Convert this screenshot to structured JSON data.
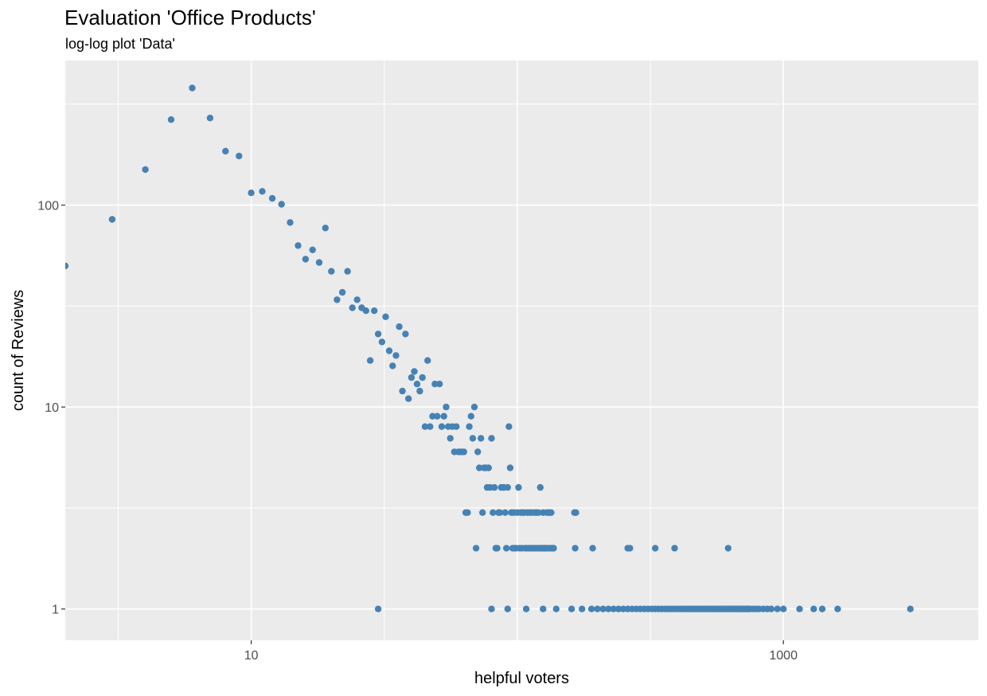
{
  "chart_data": {
    "type": "scatter",
    "title": "Evaluation 'Office Products'",
    "subtitle": "log-log plot 'Data'",
    "xlabel": "helpful voters",
    "ylabel": "count of Reviews",
    "xscale": "log10",
    "yscale": "log10",
    "xlim": [
      2,
      5400
    ],
    "ylim": [
      0.7,
      520
    ],
    "x_ticks": [
      10,
      1000
    ],
    "x_tick_labels": [
      "10",
      "1000"
    ],
    "y_ticks": [
      1,
      10,
      100
    ],
    "y_tick_labels": [
      "1",
      "10",
      "100"
    ],
    "grid": true,
    "point_color": "#4682B4",
    "panel_background": "#EBEBEB",
    "series": [
      {
        "name": "Data",
        "points": [
          [
            2,
            50
          ],
          [
            3,
            85
          ],
          [
            4,
            150
          ],
          [
            5,
            265
          ],
          [
            6,
            380
          ],
          [
            7,
            270
          ],
          [
            8,
            185
          ],
          [
            9,
            175
          ],
          [
            10,
            115
          ],
          [
            11,
            117
          ],
          [
            12,
            108
          ],
          [
            13,
            101
          ],
          [
            14,
            82
          ],
          [
            15,
            63
          ],
          [
            16,
            54
          ],
          [
            17,
            60
          ],
          [
            18,
            52
          ],
          [
            19,
            77
          ],
          [
            20,
            47
          ],
          [
            21,
            34
          ],
          [
            22,
            37
          ],
          [
            23,
            47
          ],
          [
            24,
            31
          ],
          [
            25,
            34
          ],
          [
            26,
            31
          ],
          [
            27,
            30
          ],
          [
            28,
            17
          ],
          [
            29,
            30
          ],
          [
            30,
            23
          ],
          [
            31,
            21
          ],
          [
            32,
            28
          ],
          [
            33,
            19
          ],
          [
            34,
            16
          ],
          [
            35,
            18
          ],
          [
            36,
            25
          ],
          [
            37,
            12
          ],
          [
            38,
            23
          ],
          [
            39,
            11
          ],
          [
            40,
            14
          ],
          [
            41,
            15
          ],
          [
            42,
            13
          ],
          [
            43,
            12
          ],
          [
            44,
            14
          ],
          [
            45,
            8
          ],
          [
            46,
            17
          ],
          [
            47,
            8
          ],
          [
            48,
            9
          ],
          [
            49,
            13
          ],
          [
            50,
            9
          ],
          [
            51,
            13
          ],
          [
            52,
            8
          ],
          [
            53,
            9
          ],
          [
            54,
            10
          ],
          [
            55,
            8
          ],
          [
            56,
            7
          ],
          [
            57,
            8
          ],
          [
            58,
            6
          ],
          [
            59,
            8
          ],
          [
            60,
            6
          ],
          [
            61,
            6
          ],
          [
            62,
            6
          ],
          [
            63,
            6
          ],
          [
            64,
            3
          ],
          [
            65,
            3
          ],
          [
            66,
            8
          ],
          [
            67,
            9
          ],
          [
            68,
            7
          ],
          [
            69,
            10
          ],
          [
            70,
            2
          ],
          [
            71,
            6
          ],
          [
            72,
            5
          ],
          [
            73,
            7
          ],
          [
            74,
            3
          ],
          [
            75,
            5
          ],
          [
            76,
            5
          ],
          [
            77,
            4
          ],
          [
            78,
            5
          ],
          [
            79,
            4
          ],
          [
            80,
            7
          ],
          [
            81,
            3
          ],
          [
            82,
            4
          ],
          [
            83,
            2
          ],
          [
            84,
            2
          ],
          [
            85,
            3
          ],
          [
            86,
            3
          ],
          [
            87,
            4
          ],
          [
            88,
            4
          ],
          [
            89,
            4
          ],
          [
            90,
            3
          ],
          [
            91,
            2
          ],
          [
            92,
            4
          ],
          [
            93,
            8
          ],
          [
            94,
            5
          ],
          [
            95,
            3
          ],
          [
            96,
            2
          ],
          [
            97,
            3
          ],
          [
            98,
            2
          ],
          [
            99,
            2
          ],
          [
            100,
            3
          ],
          [
            101,
            4
          ],
          [
            102,
            2
          ],
          [
            103,
            3
          ],
          [
            104,
            2
          ],
          [
            105,
            3
          ],
          [
            106,
            3
          ],
          [
            107,
            2
          ],
          [
            108,
            2
          ],
          [
            109,
            3
          ],
          [
            110,
            2
          ],
          [
            111,
            3
          ],
          [
            112,
            2
          ],
          [
            113,
            3
          ],
          [
            114,
            2
          ],
          [
            115,
            2
          ],
          [
            116,
            3
          ],
          [
            117,
            2
          ],
          [
            118,
            3
          ],
          [
            119,
            2
          ],
          [
            120,
            3
          ],
          [
            121,
            2
          ],
          [
            122,
            4
          ],
          [
            123,
            2
          ],
          [
            124,
            2
          ],
          [
            125,
            3
          ],
          [
            126,
            2
          ],
          [
            127,
            2
          ],
          [
            128,
            2
          ],
          [
            129,
            3
          ],
          [
            130,
            2
          ],
          [
            131,
            3
          ],
          [
            132,
            3
          ],
          [
            133,
            2
          ],
          [
            134,
            3
          ],
          [
            135,
            2
          ],
          [
            136,
            2
          ],
          [
            137,
            2
          ],
          [
            164,
            3
          ],
          [
            165,
            2
          ],
          [
            166,
            3
          ],
          [
            192,
            2
          ],
          [
            260,
            2
          ],
          [
            265,
            2
          ],
          [
            330,
            2
          ],
          [
            390,
            2
          ],
          [
            620,
            2
          ],
          [
            30,
            1
          ],
          [
            80,
            1
          ],
          [
            92,
            1
          ],
          [
            108,
            1
          ],
          [
            125,
            1
          ],
          [
            140,
            1
          ],
          [
            160,
            1
          ],
          [
            175,
            1
          ],
          [
            190,
            1
          ],
          [
            200,
            1
          ],
          [
            210,
            1
          ],
          [
            220,
            1
          ],
          [
            230,
            1
          ],
          [
            240,
            1
          ],
          [
            250,
            1
          ],
          [
            260,
            1
          ],
          [
            270,
            1
          ],
          [
            280,
            1
          ],
          [
            290,
            1
          ],
          [
            300,
            1
          ],
          [
            310,
            1
          ],
          [
            320,
            1
          ],
          [
            330,
            1
          ],
          [
            340,
            1
          ],
          [
            350,
            1
          ],
          [
            360,
            1
          ],
          [
            370,
            1
          ],
          [
            380,
            1
          ],
          [
            390,
            1
          ],
          [
            400,
            1
          ],
          [
            410,
            1
          ],
          [
            420,
            1
          ],
          [
            430,
            1
          ],
          [
            440,
            1
          ],
          [
            450,
            1
          ],
          [
            460,
            1
          ],
          [
            470,
            1
          ],
          [
            480,
            1
          ],
          [
            490,
            1
          ],
          [
            500,
            1
          ],
          [
            510,
            1
          ],
          [
            520,
            1
          ],
          [
            530,
            1
          ],
          [
            540,
            1
          ],
          [
            550,
            1
          ],
          [
            560,
            1
          ],
          [
            570,
            1
          ],
          [
            580,
            1
          ],
          [
            590,
            1
          ],
          [
            600,
            1
          ],
          [
            610,
            1
          ],
          [
            620,
            1
          ],
          [
            630,
            1
          ],
          [
            640,
            1
          ],
          [
            650,
            1
          ],
          [
            660,
            1
          ],
          [
            670,
            1
          ],
          [
            680,
            1
          ],
          [
            690,
            1
          ],
          [
            700,
            1
          ],
          [
            710,
            1
          ],
          [
            720,
            1
          ],
          [
            730,
            1
          ],
          [
            740,
            1
          ],
          [
            750,
            1
          ],
          [
            770,
            1
          ],
          [
            790,
            1
          ],
          [
            810,
            1
          ],
          [
            840,
            1
          ],
          [
            870,
            1
          ],
          [
            900,
            1
          ],
          [
            950,
            1
          ],
          [
            1000,
            1
          ],
          [
            1150,
            1
          ],
          [
            1300,
            1
          ],
          [
            1400,
            1
          ],
          [
            1600,
            1
          ],
          [
            3000,
            1
          ]
        ]
      }
    ]
  }
}
